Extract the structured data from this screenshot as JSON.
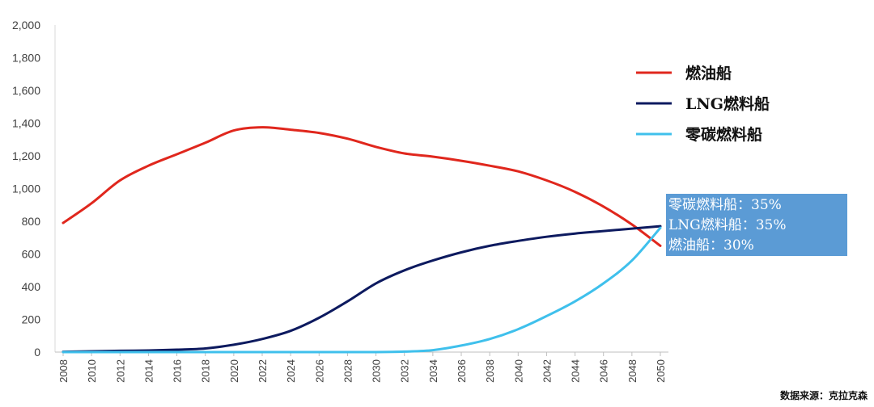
{
  "chart_data": {
    "type": "line",
    "title": "",
    "xlabel": "",
    "ylabel": "",
    "ylim": [
      0,
      2000
    ],
    "xlim": [
      2008,
      2050
    ],
    "yticks": [
      "0",
      "200",
      "400",
      "600",
      "800",
      "1,000",
      "1,200",
      "1,400",
      "1,600",
      "1,800",
      "2,000"
    ],
    "xticks": [
      "2008",
      "2010",
      "2012",
      "2014",
      "2016",
      "2018",
      "2020",
      "2022",
      "2024",
      "2026",
      "2028",
      "2030",
      "2032",
      "2034",
      "2036",
      "2038",
      "2040",
      "2042",
      "2044",
      "2046",
      "2048",
      "2050"
    ],
    "x": [
      2008,
      2010,
      2012,
      2014,
      2016,
      2018,
      2020,
      2022,
      2024,
      2026,
      2028,
      2030,
      2032,
      2034,
      2036,
      2038,
      2040,
      2042,
      2044,
      2046,
      2048,
      2050
    ],
    "series": [
      {
        "name": "燃油船",
        "color": "#e0271d",
        "values": [
          790,
          910,
          1050,
          1140,
          1210,
          1280,
          1355,
          1375,
          1360,
          1340,
          1305,
          1255,
          1215,
          1195,
          1170,
          1140,
          1105,
          1050,
          980,
          890,
          780,
          650
        ]
      },
      {
        "name": "LNG燃料船",
        "color": "#0d1a5f",
        "values": [
          2,
          5,
          8,
          10,
          15,
          22,
          45,
          80,
          130,
          210,
          310,
          420,
          500,
          560,
          610,
          650,
          680,
          705,
          725,
          740,
          755,
          770
        ]
      },
      {
        "name": "零碳燃料船",
        "color": "#3fc0ec",
        "values": [
          0,
          0,
          0,
          0,
          0,
          0,
          0,
          0,
          0,
          0,
          0,
          0,
          3,
          12,
          40,
          80,
          140,
          220,
          310,
          420,
          560,
          760
        ]
      }
    ],
    "legend_position": "right",
    "annotations": [
      "零碳燃料船：35%",
      "LNG燃料船：35%",
      "燃油船：30%"
    ]
  },
  "source_note": "数据来源：克拉克森"
}
